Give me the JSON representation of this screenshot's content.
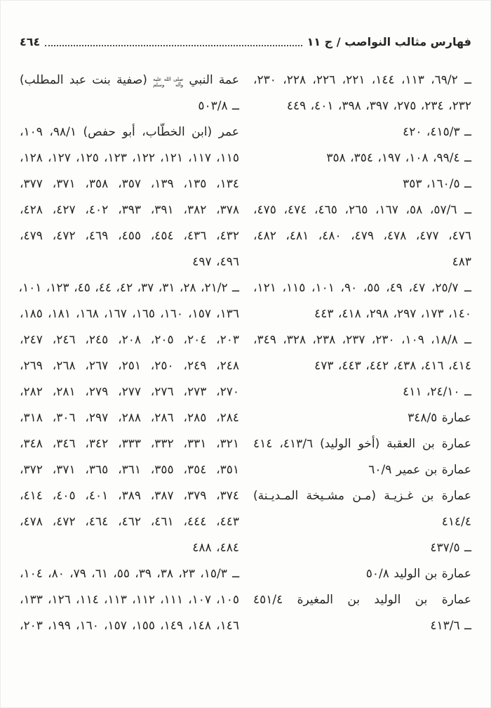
{
  "header": {
    "title": "فهارس مثالب النواصب / ج ١١",
    "page_number": "٤٦٤"
  },
  "honorific": {
    "top": "صلى الله عليه",
    "bottom": "وآله وسلم"
  },
  "columns": {
    "right": {
      "lines": [
        {
          "text": "ــ ٦٩/٢، ١١٣، ١٤٤، ٢٢١، ٢٢٦، ٢٢٨، ٢٣٠،",
          "fill": true
        },
        {
          "text": "٢٣٢، ٢٣٤، ٢٧٥، ٣٩٧، ٣٩٨، ٤٠١، ٤٤٩"
        },
        {
          "text": "ــ ٤١٥/٣، ٤٢٠"
        },
        {
          "text": "ــ ٩٩/٤، ١٠٨، ١٩٧، ٣٥٤، ٣٥٨"
        },
        {
          "text": "ــ ١٦٠/٥، ٣٥٣"
        },
        {
          "text": "ــ ٥٧/٦، ٥٨، ١٦٧، ٢٦٥، ٤٦٥، ٤٧٤، ٤٧٥،",
          "fill": true
        },
        {
          "text": "٤٧٦، ٤٧٧، ٤٧٨، ٤٧٩، ٤٨٠، ٤٨١، ٤٨٢،",
          "fill": true
        },
        {
          "text": "٤٨٣"
        },
        {
          "text": "ــ ٢٥/٧، ٤٧، ٤٩، ٥٥، ٩٠، ١٠١، ١١٥، ١٢١،",
          "fill": true
        },
        {
          "text": "١٤٠، ١٧٣، ٢٩٧، ٢٩٨، ٤١٨، ٤٤٣"
        },
        {
          "text": "ــ ١٨/٨، ١٠٩، ٢٣٠، ٢٣٧، ٢٣٨، ٣٢٨، ٣٤٩،",
          "fill": true
        },
        {
          "text": "٤١٤، ٤١٦، ٤٣٨، ٤٤٢، ٤٤٣، ٤٧٣"
        },
        {
          "text": "ــ ٢٤/١٠، ٤١١"
        },
        {
          "text": "عمارة ٣٤٨/٥"
        },
        {
          "text": "عمارة بن العقبة (أخو الوليد) ٤١٣/٦، ٤١٤",
          "fill": true
        },
        {
          "text": "عمارة بن عمير ٦٠/٩"
        },
        {
          "text": "عمارة بن غـزيـة (مـن مشـيخة المـديـنة)",
          "fill": true
        },
        {
          "text": "٤١٤/٤"
        },
        {
          "text": "ــ ٤٣٧/٥"
        },
        {
          "text": "عمارة بن الوليد ٥٠/٨"
        },
        {
          "text": "عمارة بن الوليد بن المغيرة ٤٥١/٤",
          "fill": true
        },
        {
          "text": "ــ ٤١٣/٦"
        }
      ]
    },
    "left": {
      "lines": [
        {
          "pre": "عمة النبي",
          "post": "(صفية بنت عبد المطلب)",
          "honorific": true,
          "fill": true
        },
        {
          "text": "ــ ٥٠٣/٨"
        },
        {
          "text": "عمر (ابن الخطّاب، أبو حفص) ٩٨/١، ١٠٩،",
          "fill": true
        },
        {
          "text": "١١٥، ١١٧، ١٢١، ١٢٢، ١٢٣، ١٢٥، ١٢٧، ١٢٨،",
          "fill": true
        },
        {
          "text": "١٣٤، ١٣٥، ١٣٩، ٣٥٧، ٣٥٨، ٣٧١، ٣٧٧،",
          "fill": true
        },
        {
          "text": "٣٧٨، ٣٨٢، ٣٩١، ٣٩٣، ٤٠٢، ٤٢٧، ٤٢٨،",
          "fill": true
        },
        {
          "text": "٤٣٢، ٤٣٦، ٤٥٤، ٤٥٥، ٤٦٩، ٤٧٢، ٤٧٩،",
          "fill": true
        },
        {
          "text": "٤٩٦، ٤٩٧"
        },
        {
          "text": "ــ ٢١/٢، ٢٨، ٣١، ٣٧، ٤٢، ٤٤، ٤٥، ١٢٣، ١٠١،",
          "fill": true
        },
        {
          "text": "١٣٦، ١٥٧، ١٦٠، ١٦٥، ١٦٧، ١٦٨، ١٨١، ١٨٥،",
          "fill": true
        },
        {
          "text": "٢٠٣، ٢٠٤، ٢٠٥، ٢٠٨، ٢٤٥، ٢٤٦، ٢٤٧،",
          "fill": true
        },
        {
          "text": "٢٤٨، ٢٤٩، ٢٥٠، ٢٥١، ٢٦٧، ٢٦٨، ٢٦٩،",
          "fill": true
        },
        {
          "text": "٢٧٠، ٢٧٣، ٢٧٦، ٢٧٧، ٢٧٩، ٢٨١، ٢٨٢،",
          "fill": true
        },
        {
          "text": "٢٨٤، ٢٨٥، ٢٨٦، ٢٨٨، ٢٩٧، ٣٠٦، ٣١٨،",
          "fill": true
        },
        {
          "text": "٣٢١، ٣٣١، ٣٣٢، ٣٣٣، ٣٤٢، ٣٤٦، ٣٤٨،",
          "fill": true
        },
        {
          "text": "٣٥١، ٣٥٤، ٣٥٥، ٣٦١، ٣٦٥، ٣٧١، ٣٧٢،",
          "fill": true
        },
        {
          "text": "٣٧٤، ٣٧٩، ٣٨٧، ٣٨٩، ٤٠١، ٤٠٥، ٤١٤،",
          "fill": true
        },
        {
          "text": "٤٤٣، ٤٤٤، ٤٦١، ٤٦٢، ٤٦٤، ٤٧٢، ٤٧٨،",
          "fill": true
        },
        {
          "text": "٤٨٤، ٤٨٨"
        },
        {
          "text": "ــ ١٥/٣، ٢٣، ٣٨، ٣٩، ٥٥، ٦١، ٧٩، ٨٠، ١٠٤،",
          "fill": true
        },
        {
          "text": "١٠٥، ١٠٧، ١١١، ١١٢، ١١٣، ١١٤، ١٢٦، ١٣٣،",
          "fill": true
        },
        {
          "text": "١٤٦، ١٤٨، ١٤٩، ١٥٥، ١٥٧، ١٦٠، ١٩٩، ٢٠٣،",
          "fill": true
        }
      ]
    }
  }
}
